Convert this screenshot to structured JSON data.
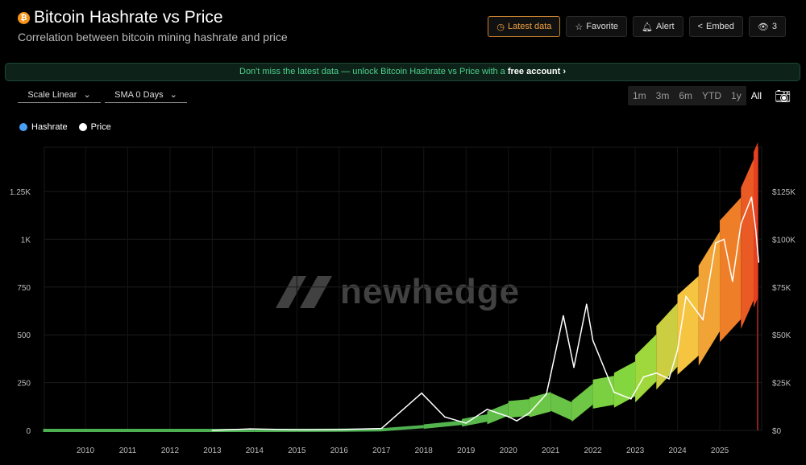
{
  "header": {
    "title": "Bitcoin Hashrate vs Price",
    "subtitle": "Correlation between bitcoin mining hashrate and price",
    "icon": "bitcoin-icon"
  },
  "toolbar": {
    "latest": "Latest data",
    "favorite": "Favorite",
    "alert": "Alert",
    "embed": "Embed",
    "views": "3"
  },
  "banner": {
    "text": "Don't miss the latest data — unlock Bitcoin Hashrate vs Price with a ",
    "link": "free account ›"
  },
  "controls": {
    "scale": "Scale Linear",
    "sma": "SMA 0 Days",
    "ranges": [
      "1m",
      "3m",
      "6m",
      "YTD",
      "1y",
      "All"
    ],
    "active_range": "All"
  },
  "watermark": "newhedge",
  "colors": {
    "hashrate_low": "#4caf50",
    "hashrate_mid": "#f5c542",
    "hashrate_high": "#e53920",
    "price": "#ffffff",
    "accent": "#f7931a"
  },
  "chart_data": {
    "type": "line",
    "legend": [
      {
        "name": "Hashrate",
        "color": "#4a9ff5"
      },
      {
        "name": "Price",
        "color": "#ffffff"
      }
    ],
    "legend_placement": "top-left",
    "x_ticks": [
      "2010",
      "2011",
      "2012",
      "2013",
      "2014",
      "2015",
      "2016",
      "2017",
      "2018",
      "2019",
      "2020",
      "2021",
      "2022",
      "2023",
      "2024",
      "2025"
    ],
    "y_left": {
      "ticks": [
        "0",
        "250",
        "500",
        "750",
        "1K",
        "1.25K"
      ],
      "range": [
        0,
        1500
      ]
    },
    "y_right": {
      "ticks": [
        "$0",
        "$25K",
        "$50K",
        "$75K",
        "$100K",
        "$125K"
      ],
      "range": [
        0,
        150000
      ]
    },
    "series": [
      {
        "name": "Hashrate",
        "axis": "left",
        "x": [
          2009.0,
          2013.0,
          2014.0,
          2015.0,
          2016.0,
          2017.0,
          2018.0,
          2018.9,
          2019.5,
          2020.0,
          2020.5,
          2021.0,
          2021.5,
          2022.0,
          2022.5,
          2023.0,
          2023.5,
          2024.0,
          2024.5,
          2025.0,
          2025.5,
          2025.8,
          2025.9
        ],
        "y": [
          0,
          0.02,
          0.1,
          0.3,
          0.8,
          3,
          20,
          40,
          65,
          110,
          120,
          150,
          100,
          190,
          210,
          270,
          380,
          500,
          600,
          780,
          900,
          1050,
          1100
        ]
      },
      {
        "name": "Price",
        "axis": "right",
        "x": [
          2013.0,
          2013.9,
          2015.0,
          2016.0,
          2017.0,
          2017.95,
          2018.5,
          2019.0,
          2019.5,
          2020.0,
          2020.2,
          2020.5,
          2020.9,
          2021.0,
          2021.3,
          2021.55,
          2021.85,
          2022.0,
          2022.5,
          2022.9,
          2023.2,
          2023.5,
          2023.8,
          2024.0,
          2024.2,
          2024.6,
          2024.9,
          2025.1,
          2025.3,
          2025.5,
          2025.75,
          2025.85,
          2025.92
        ],
        "y": [
          13,
          800,
          300,
          430,
          1000,
          19500,
          7000,
          3800,
          11000,
          7200,
          5000,
          9200,
          19000,
          29000,
          60000,
          33000,
          66000,
          47000,
          20000,
          16500,
          28000,
          30000,
          27000,
          42000,
          70000,
          58000,
          98000,
          100000,
          78000,
          108000,
          122000,
          105000,
          88000
        ]
      }
    ]
  }
}
